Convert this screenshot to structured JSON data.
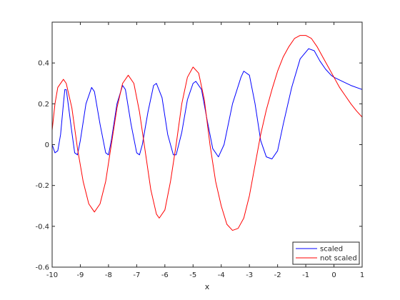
{
  "chart_data": {
    "type": "line",
    "title": "",
    "xlabel": "x",
    "ylabel": "",
    "xlim": [
      -10,
      1
    ],
    "ylim": [
      -0.6,
      0.6
    ],
    "xticks": [
      -10,
      -9,
      -8,
      -7,
      -6,
      -5,
      -4,
      -3,
      -2,
      -1,
      0,
      1
    ],
    "xtick_labels": [
      "-10",
      "-9",
      "-8",
      "-7",
      "-6",
      "-5",
      "-4",
      "-3",
      "-2",
      "-1",
      "0",
      "1"
    ],
    "yticks": [
      -0.6,
      -0.4,
      -0.2,
      0,
      0.2,
      0.4
    ],
    "ytick_labels": [
      "-0.6",
      "-0.4",
      "-0.2",
      "0",
      "0.2",
      "0.4"
    ],
    "grid": false,
    "legend_position": "bottom-right",
    "series": [
      {
        "name": "scaled",
        "color": "#0000ff",
        "points": [
          [
            -10,
            0.0
          ],
          [
            -9.9,
            -0.04
          ],
          [
            -9.8,
            -0.03
          ],
          [
            -9.7,
            0.05
          ],
          [
            -9.6,
            0.2
          ],
          [
            -9.55,
            0.27
          ],
          [
            -9.5,
            0.27
          ],
          [
            -9.45,
            0.22
          ],
          [
            -9.3,
            0.06
          ],
          [
            -9.2,
            -0.04
          ],
          [
            -9.1,
            -0.05
          ],
          [
            -9.0,
            0.02
          ],
          [
            -8.8,
            0.2
          ],
          [
            -8.6,
            0.28
          ],
          [
            -8.5,
            0.26
          ],
          [
            -8.3,
            0.1
          ],
          [
            -8.1,
            -0.04
          ],
          [
            -8.0,
            -0.05
          ],
          [
            -7.9,
            0.02
          ],
          [
            -7.7,
            0.2
          ],
          [
            -7.5,
            0.29
          ],
          [
            -7.4,
            0.27
          ],
          [
            -7.2,
            0.1
          ],
          [
            -7.0,
            -0.04
          ],
          [
            -6.9,
            -0.05
          ],
          [
            -6.8,
            0.0
          ],
          [
            -6.6,
            0.16
          ],
          [
            -6.4,
            0.29
          ],
          [
            -6.3,
            0.3
          ],
          [
            -6.1,
            0.23
          ],
          [
            -5.9,
            0.05
          ],
          [
            -5.7,
            -0.05
          ],
          [
            -5.6,
            -0.05
          ],
          [
            -5.4,
            0.06
          ],
          [
            -5.2,
            0.22
          ],
          [
            -5.0,
            0.3
          ],
          [
            -4.9,
            0.31
          ],
          [
            -4.7,
            0.27
          ],
          [
            -4.5,
            0.12
          ],
          [
            -4.3,
            -0.02
          ],
          [
            -4.1,
            -0.06
          ],
          [
            -3.9,
            0.0
          ],
          [
            -3.6,
            0.2
          ],
          [
            -3.3,
            0.33
          ],
          [
            -3.2,
            0.36
          ],
          [
            -3.0,
            0.34
          ],
          [
            -2.8,
            0.2
          ],
          [
            -2.6,
            0.02
          ],
          [
            -2.4,
            -0.06
          ],
          [
            -2.2,
            -0.07
          ],
          [
            -2.0,
            -0.03
          ],
          [
            -1.8,
            0.1
          ],
          [
            -1.5,
            0.28
          ],
          [
            -1.2,
            0.42
          ],
          [
            -0.9,
            0.47
          ],
          [
            -0.7,
            0.46
          ],
          [
            -0.5,
            0.41
          ],
          [
            -0.3,
            0.37
          ],
          [
            -0.1,
            0.34
          ],
          [
            0.0,
            0.33
          ],
          [
            0.3,
            0.31
          ],
          [
            0.6,
            0.29
          ],
          [
            1.0,
            0.27
          ]
        ]
      },
      {
        "name": "not scaled",
        "color": "#ff0000",
        "points": [
          [
            -10,
            0.07
          ],
          [
            -9.9,
            0.2
          ],
          [
            -9.8,
            0.28
          ],
          [
            -9.6,
            0.32
          ],
          [
            -9.5,
            0.3
          ],
          [
            -9.3,
            0.18
          ],
          [
            -9.1,
            -0.02
          ],
          [
            -8.9,
            -0.18
          ],
          [
            -8.7,
            -0.29
          ],
          [
            -8.5,
            -0.33
          ],
          [
            -8.3,
            -0.29
          ],
          [
            -8.1,
            -0.18
          ],
          [
            -7.9,
            0.0
          ],
          [
            -7.7,
            0.18
          ],
          [
            -7.5,
            0.3
          ],
          [
            -7.3,
            0.34
          ],
          [
            -7.1,
            0.3
          ],
          [
            -6.9,
            0.16
          ],
          [
            -6.7,
            -0.03
          ],
          [
            -6.5,
            -0.22
          ],
          [
            -6.3,
            -0.34
          ],
          [
            -6.2,
            -0.36
          ],
          [
            -6.0,
            -0.32
          ],
          [
            -5.8,
            -0.18
          ],
          [
            -5.6,
            0.0
          ],
          [
            -5.4,
            0.2
          ],
          [
            -5.2,
            0.33
          ],
          [
            -5.0,
            0.38
          ],
          [
            -4.8,
            0.35
          ],
          [
            -4.6,
            0.22
          ],
          [
            -4.4,
            0.0
          ],
          [
            -4.2,
            -0.18
          ],
          [
            -4.0,
            -0.3
          ],
          [
            -3.8,
            -0.39
          ],
          [
            -3.6,
            -0.42
          ],
          [
            -3.4,
            -0.41
          ],
          [
            -3.2,
            -0.36
          ],
          [
            -3.0,
            -0.25
          ],
          [
            -2.8,
            -0.1
          ],
          [
            -2.6,
            0.05
          ],
          [
            -2.4,
            0.17
          ],
          [
            -2.2,
            0.27
          ],
          [
            -2.0,
            0.36
          ],
          [
            -1.8,
            0.43
          ],
          [
            -1.6,
            0.48
          ],
          [
            -1.4,
            0.52
          ],
          [
            -1.2,
            0.535
          ],
          [
            -1.0,
            0.535
          ],
          [
            -0.8,
            0.52
          ],
          [
            -0.6,
            0.48
          ],
          [
            -0.4,
            0.43
          ],
          [
            -0.2,
            0.38
          ],
          [
            0.0,
            0.33
          ],
          [
            0.2,
            0.28
          ],
          [
            0.4,
            0.24
          ],
          [
            0.6,
            0.2
          ],
          [
            0.8,
            0.165
          ],
          [
            1.0,
            0.135
          ]
        ]
      }
    ]
  }
}
